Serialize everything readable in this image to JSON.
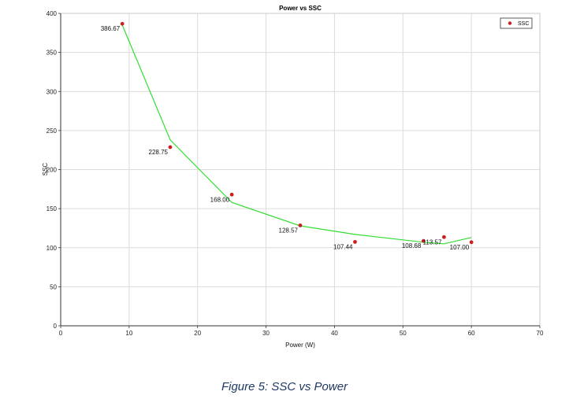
{
  "chart_data": {
    "type": "scatter",
    "title": "Power vs SSC",
    "xlabel": "Power (W)",
    "ylabel": "SSC",
    "xlim": [
      0,
      70
    ],
    "ylim": [
      0,
      400
    ],
    "x_ticks": [
      "0",
      "10",
      "20",
      "30",
      "40",
      "50",
      "60",
      "70"
    ],
    "y_ticks": [
      "0",
      "50",
      "100",
      "150",
      "200",
      "250",
      "300",
      "350",
      "400"
    ],
    "grid": true,
    "legend_position": "top-right",
    "series": [
      {
        "name": "SSC",
        "color": "#cc1f1f",
        "points": [
          {
            "x": 9,
            "y": 386.67,
            "label": "386.67"
          },
          {
            "x": 16,
            "y": 228.75,
            "label": "228.75"
          },
          {
            "x": 25,
            "y": 168.0,
            "label": "168.00"
          },
          {
            "x": 35,
            "y": 128.57,
            "label": "128.57"
          },
          {
            "x": 43,
            "y": 107.44,
            "label": "107.44"
          },
          {
            "x": 53,
            "y": 108.68,
            "label": "108.68"
          },
          {
            "x": 56,
            "y": 113.57,
            "label": "113.57"
          },
          {
            "x": 60,
            "y": 107.0,
            "label": "107.00"
          }
        ]
      }
    ],
    "fit_line": {
      "color": "#33dd33",
      "points": [
        {
          "x": 9,
          "y": 385
        },
        {
          "x": 16,
          "y": 238
        },
        {
          "x": 25,
          "y": 158
        },
        {
          "x": 35,
          "y": 128
        },
        {
          "x": 43,
          "y": 117
        },
        {
          "x": 53,
          "y": 107
        },
        {
          "x": 56,
          "y": 105
        },
        {
          "x": 60,
          "y": 113
        }
      ]
    }
  },
  "caption": "Figure 5: SSC vs Power"
}
